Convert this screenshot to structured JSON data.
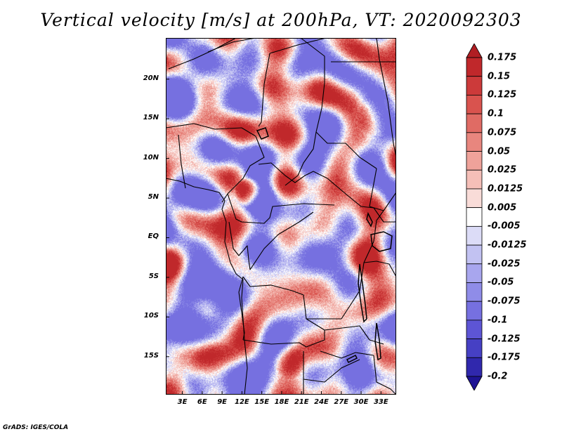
{
  "title": "Vertical velocity [m/s] at 200hPa, VT: 2020092303",
  "credit": "GrADS: IGES/COLA",
  "map": {
    "lat_labels": [
      "20N",
      "15N",
      "10N",
      "5N",
      "EQ",
      "5S",
      "10S",
      "15S"
    ],
    "lat_values": [
      20,
      15,
      10,
      5,
      0,
      -5,
      -10,
      -15
    ],
    "lon_labels": [
      "3E",
      "6E",
      "9E",
      "12E",
      "15E",
      "18E",
      "21E",
      "24E",
      "27E",
      "30E",
      "33E"
    ],
    "lon_values": [
      3,
      6,
      9,
      12,
      15,
      18,
      21,
      24,
      27,
      30,
      33
    ],
    "lon_range": [
      0.5,
      35.3
    ],
    "lat_range": [
      -19.8,
      25.2
    ],
    "border_color": "#000000"
  },
  "colorbar": {
    "labels": [
      "0.175",
      "0.15",
      "0.125",
      "0.1",
      "0.075",
      "0.05",
      "0.025",
      "0.0125",
      "0.005",
      "-0.005",
      "-0.0125",
      "-0.025",
      "-0.05",
      "-0.075",
      "-0.1",
      "-0.125",
      "-0.175",
      "-0.2"
    ],
    "colors": [
      "#b01e23",
      "#c0282b",
      "#cc3a3a",
      "#d9534e",
      "#e06b64",
      "#e8867e",
      "#efa29a",
      "#f5bfb8",
      "#f9dcd8",
      "#ffffff",
      "#dcdcf7",
      "#c2c2f2",
      "#a8a6ee",
      "#8f8ce8",
      "#7670e0",
      "#5d55d5",
      "#4640c4",
      "#3028ad",
      "#1e1494"
    ]
  }
}
